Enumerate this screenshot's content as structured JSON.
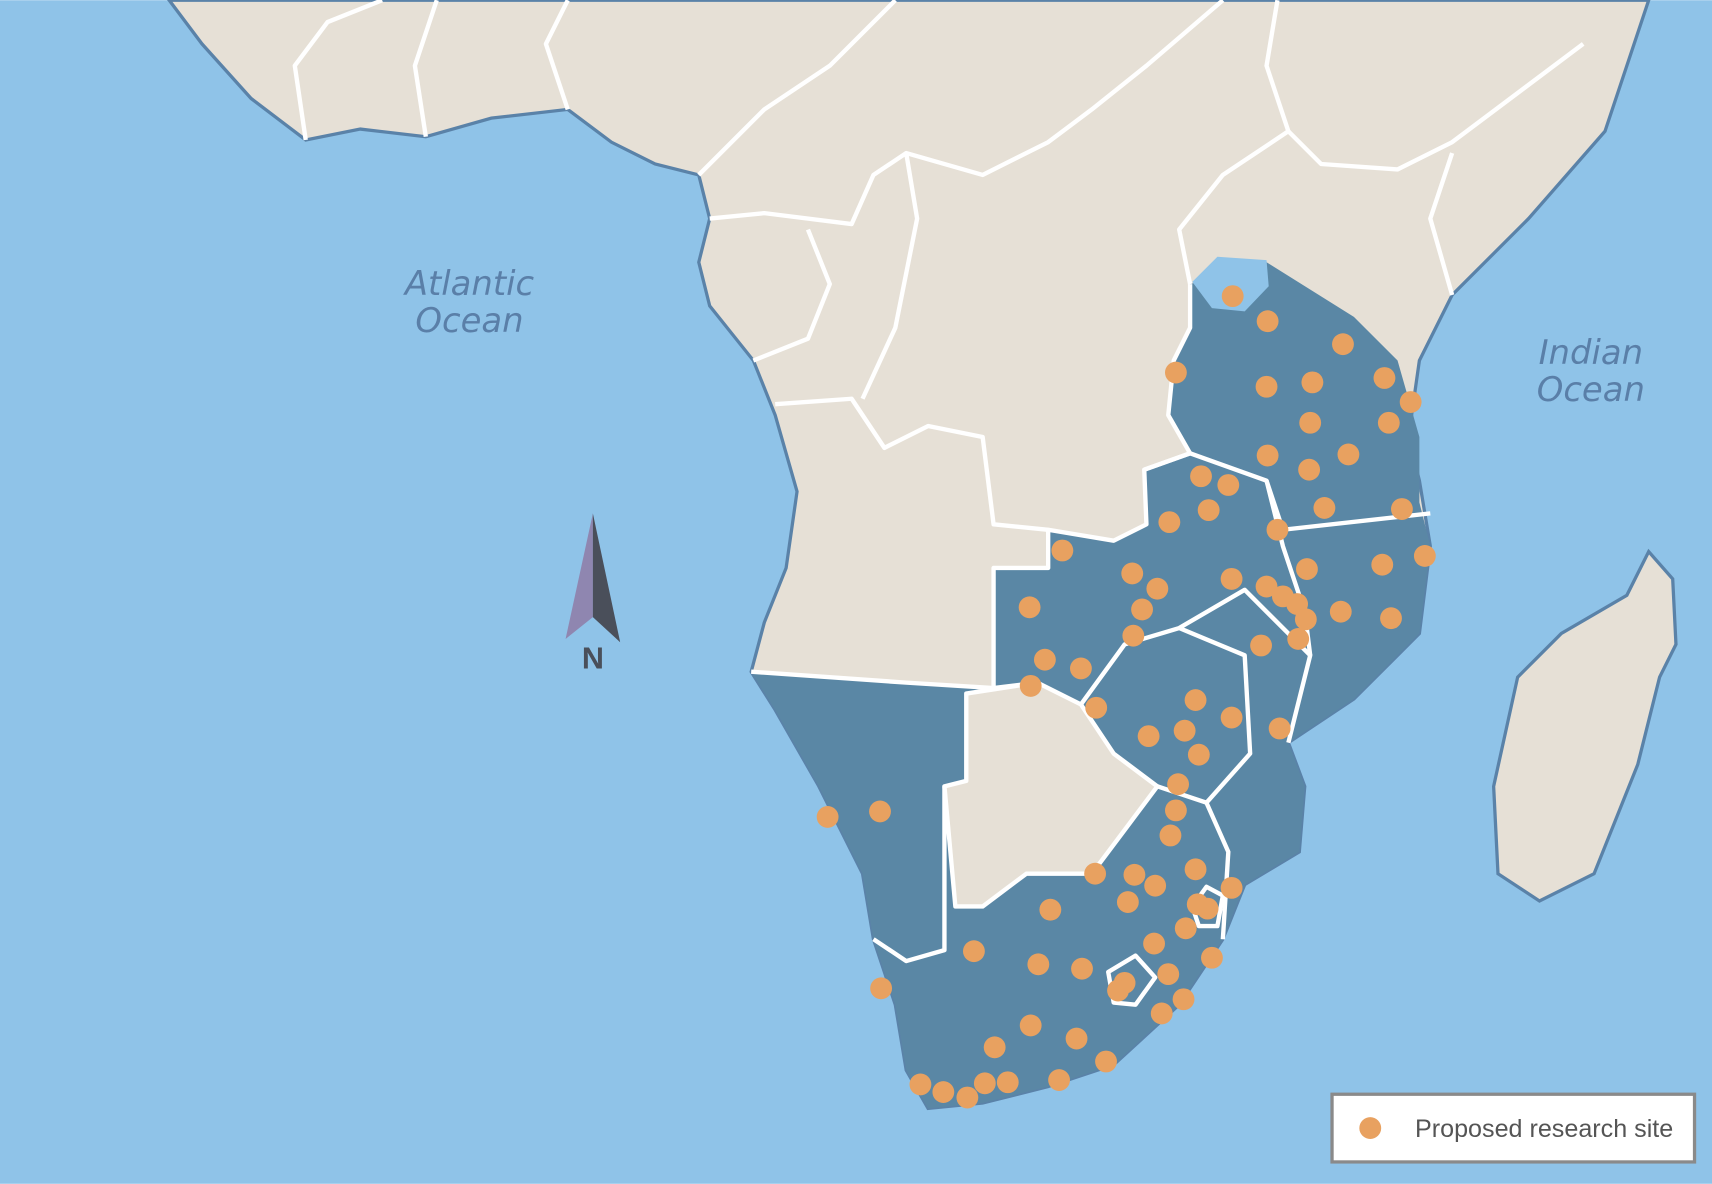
{
  "oceans": [
    {
      "lines": [
        "Atlantic",
        "Ocean"
      ]
    },
    {
      "lines": [
        "Indian",
        "Ocean"
      ]
    }
  ],
  "compass": {
    "label": "N"
  },
  "legend": {
    "label": "Proposed research site"
  }
}
